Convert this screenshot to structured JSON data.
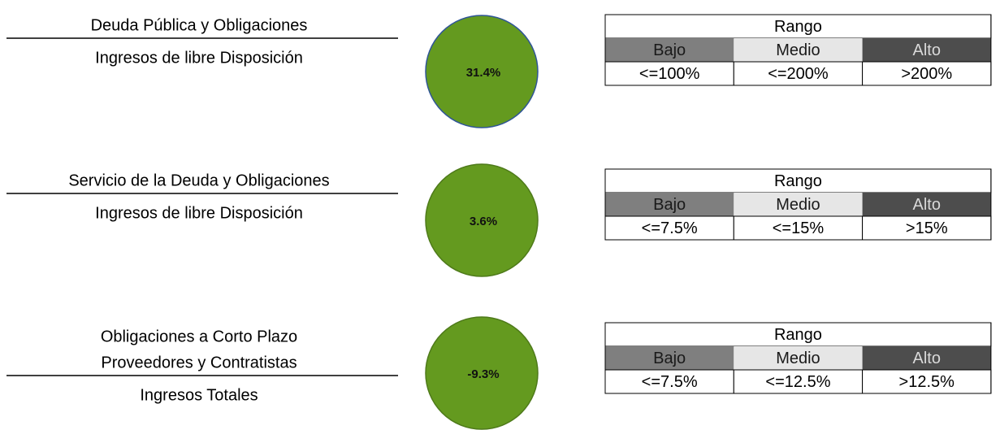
{
  "indicators": [
    {
      "numerator": [
        "Deuda Pública y Obligaciones"
      ],
      "denominator": "Ingresos de libre Disposición",
      "value_label": "31.4%",
      "range_title": "Rango",
      "levels": [
        "Bajo",
        "Medio",
        "Alto"
      ],
      "thresholds": [
        "<=100%",
        "<=200%",
        ">200%"
      ]
    },
    {
      "numerator": [
        "Servicio de la Deuda y Obligaciones"
      ],
      "denominator": "Ingresos de libre Disposición",
      "value_label": "3.6%",
      "range_title": "Rango",
      "levels": [
        "Bajo",
        "Medio",
        "Alto"
      ],
      "thresholds": [
        "<=7.5%",
        "<=15%",
        ">15%"
      ]
    },
    {
      "numerator": [
        "Obligaciones a Corto Plazo",
        "Proveedores y Contratistas"
      ],
      "denominator": "Ingresos Totales",
      "value_label": "-9.3%",
      "range_title": "Rango",
      "levels": [
        "Bajo",
        "Medio",
        "Alto"
      ],
      "thresholds": [
        "<=7.5%",
        "<=12.5%",
        ">12.5%"
      ]
    }
  ]
}
